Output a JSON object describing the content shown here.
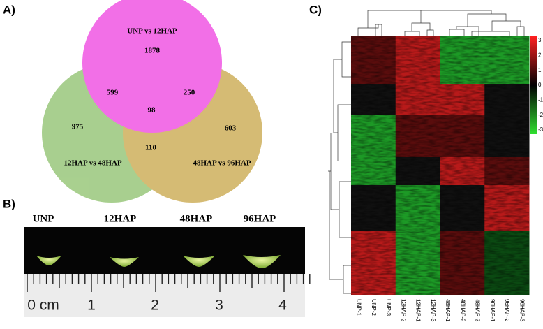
{
  "panels": {
    "a": "A)",
    "b": "B)",
    "c": "C)"
  },
  "venn": {
    "sets": [
      "UNP vs 12HAP",
      "12HAP vs 48HAP",
      "48HAP vs 96HAP"
    ],
    "counts": {
      "only_1": 1878,
      "only_2": 975,
      "only_3": 603,
      "1_2": 599,
      "1_3": 250,
      "2_3": 110,
      "all": 98
    }
  },
  "photo": {
    "labels": [
      "UNP",
      "12HAP",
      "48HAP",
      "96HAP"
    ],
    "ruler": [
      "0 cm",
      "1",
      "2",
      "3",
      "4"
    ]
  },
  "heatmap": {
    "columns": [
      "UNP-1",
      "UNP-2",
      "UNP-3",
      "12HAP-2",
      "12HAP-1",
      "12HAP-3",
      "48HAP-1",
      "48HAP-2",
      "48HAP-3",
      "96HAP-1",
      "96HAP-2",
      "96HAP-3"
    ],
    "colorbar_ticks": [
      3,
      2,
      1,
      0,
      -1,
      -2,
      -3
    ]
  }
}
